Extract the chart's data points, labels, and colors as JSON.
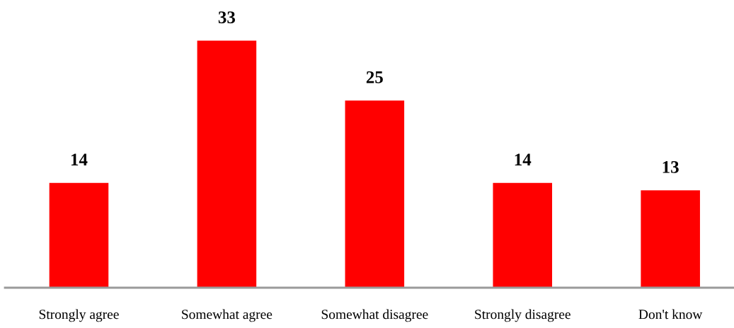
{
  "chart_data": {
    "type": "bar",
    "categories": [
      "Strongly agree",
      "Somewhat agree",
      "Somewhat disagree",
      "Strongly disagree",
      "Don't know"
    ],
    "values": [
      14,
      33,
      25,
      14,
      13
    ],
    "color": "#ff0000",
    "tick_labels": "x",
    "data_labels": true,
    "grid": false,
    "legend": false
  }
}
